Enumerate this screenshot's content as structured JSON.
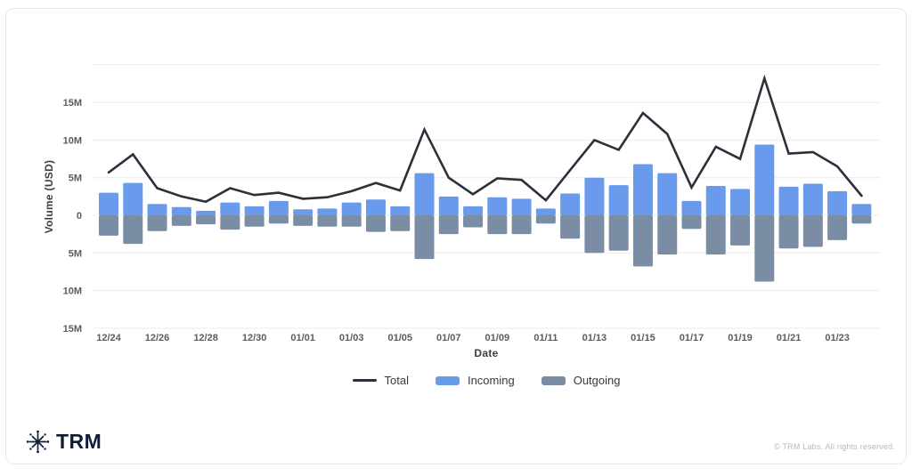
{
  "chart_data": {
    "type": "line+bar combo",
    "title": "",
    "xlabel": "Date",
    "ylabel": "Volume (USD)",
    "grid": true,
    "legend_position": "bottom",
    "ylim": [
      -15.3,
      20.3
    ],
    "y_unit": "M",
    "y_ticks": [
      {
        "value": 20,
        "label": ""
      },
      {
        "value": 15,
        "label": "15M"
      },
      {
        "value": 10,
        "label": "10M"
      },
      {
        "value": 5,
        "label": "5M"
      },
      {
        "value": 0,
        "label": "0"
      },
      {
        "value": -5,
        "label": "5M"
      },
      {
        "value": -10,
        "label": "10M"
      },
      {
        "value": -15,
        "label": "15M"
      }
    ],
    "x": [
      "12/24",
      "12/25",
      "12/26",
      "12/27",
      "12/28",
      "12/29",
      "12/30",
      "12/31",
      "01/01",
      "01/02",
      "01/03",
      "01/04",
      "01/05",
      "01/06",
      "01/07",
      "01/08",
      "01/09",
      "01/10",
      "01/11",
      "01/12",
      "01/13",
      "01/14",
      "01/15",
      "01/16",
      "01/17",
      "01/18",
      "01/19",
      "01/20",
      "01/21",
      "01/22",
      "01/23",
      "01/24"
    ],
    "x_tick_every": 2,
    "series": [
      {
        "name": "Total",
        "type": "line",
        "color": "#2b303a",
        "values": [
          5.7,
          8.1,
          3.6,
          2.5,
          1.8,
          3.6,
          2.7,
          3.0,
          2.2,
          2.4,
          3.2,
          4.3,
          3.3,
          11.4,
          5.0,
          2.8,
          4.9,
          4.7,
          2.0,
          6.0,
          10.0,
          8.7,
          13.6,
          10.8,
          3.7,
          9.1,
          7.5,
          18.2,
          8.2,
          8.4,
          6.5,
          2.6
        ]
      },
      {
        "name": "Incoming",
        "type": "bar",
        "color": "#699aec",
        "values": [
          3.0,
          4.3,
          1.5,
          1.1,
          0.6,
          1.7,
          1.2,
          1.9,
          0.8,
          0.9,
          1.7,
          2.1,
          1.2,
          5.6,
          2.5,
          1.2,
          2.4,
          2.2,
          0.9,
          2.9,
          5.0,
          4.0,
          6.8,
          5.6,
          1.9,
          3.9,
          3.5,
          9.4,
          3.8,
          4.2,
          3.2,
          1.5
        ]
      },
      {
        "name": "Outgoing",
        "type": "bar",
        "color": "#7b8da4",
        "values": [
          -2.7,
          -3.8,
          -2.1,
          -1.4,
          -1.2,
          -1.9,
          -1.5,
          -1.1,
          -1.4,
          -1.5,
          -1.5,
          -2.2,
          -2.1,
          -5.8,
          -2.5,
          -1.6,
          -2.5,
          -2.5,
          -1.1,
          -3.1,
          -5.0,
          -4.7,
          -6.8,
          -5.2,
          -1.8,
          -5.2,
          -4.0,
          -8.8,
          -4.4,
          -4.2,
          -3.3,
          -1.1
        ]
      }
    ]
  },
  "footer": {
    "logo_text": "TRM",
    "copyright": "© TRM Labs. All rights reserved."
  },
  "style": {
    "grid_color": "#ececec",
    "tick_color": "#5c5c5c",
    "logo_color": "#101d36"
  }
}
